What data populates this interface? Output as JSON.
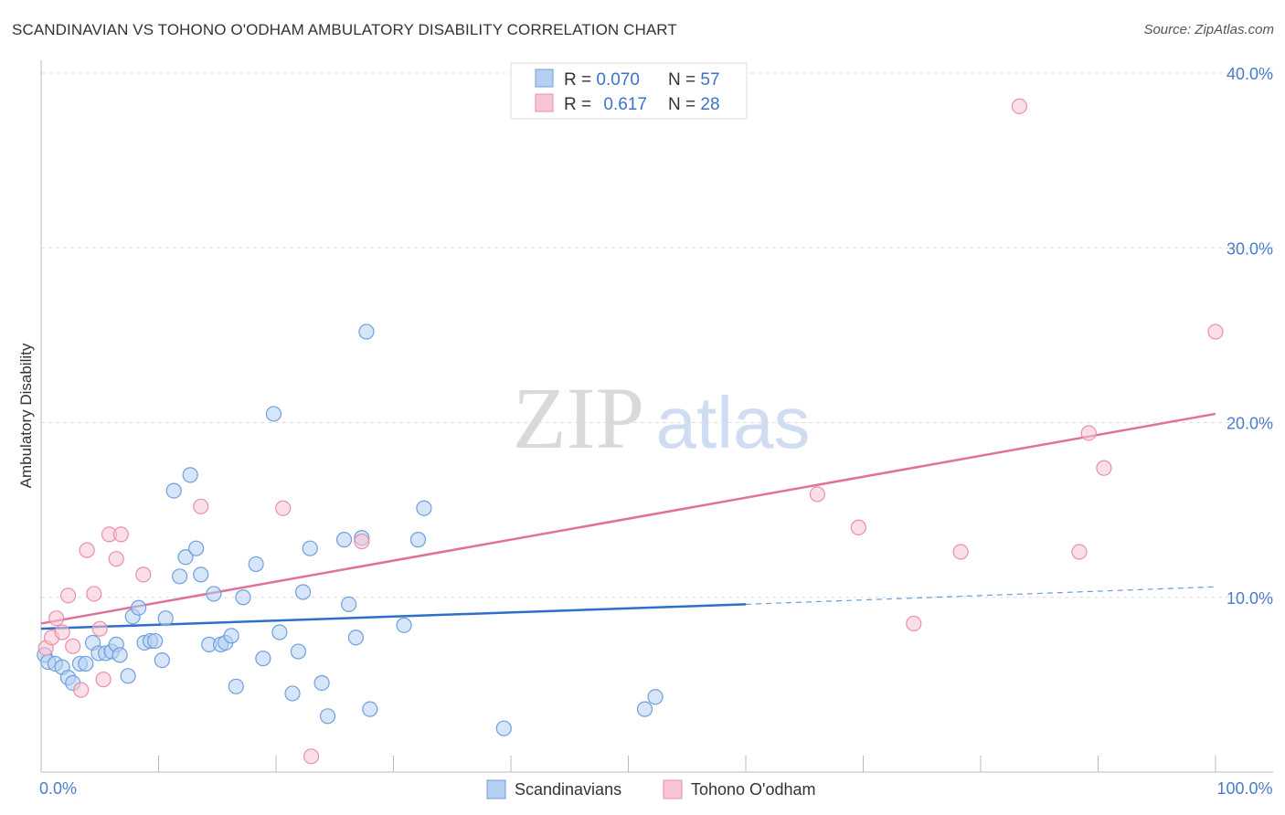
{
  "title": "SCANDINAVIAN VS TOHONO O'ODHAM AMBULATORY DISABILITY CORRELATION CHART",
  "source": "Source: ZipAtlas.com",
  "watermark": {
    "zip": "ZIP",
    "atlas": "atlas"
  },
  "colors": {
    "blue_fill": "#b5cff2",
    "blue_stroke": "#6f9fdc",
    "blue_line": "#2e6fcc",
    "pink_fill": "#f8c5d4",
    "pink_stroke": "#e98eaa",
    "pink_line": "#e0719a",
    "axis_text": "#4a7cc9",
    "grid": "#dddddd"
  },
  "legend": {
    "rows": [
      {
        "r_label": "R = ",
        "r_value": "0.070",
        "n_label": "N = ",
        "n_value": "57",
        "series": "blue"
      },
      {
        "r_label": "R = ",
        "r_value": "0.617",
        "n_label": "N = ",
        "n_value": "28",
        "series": "pink"
      }
    ]
  },
  "chart_data": {
    "type": "scatter",
    "ylabel": "Ambulatory Disability",
    "xlabel": "",
    "xlim": [
      0,
      100
    ],
    "ylim": [
      0,
      40
    ],
    "x_tick_labels": [
      {
        "value": 0,
        "label": "0.0%"
      },
      {
        "value": 100,
        "label": "100.0%"
      }
    ],
    "y_ticks": [
      {
        "value": 10,
        "label": "10.0%"
      },
      {
        "value": 20,
        "label": "20.0%"
      },
      {
        "value": 30,
        "label": "30.0%"
      },
      {
        "value": 40,
        "label": "40.0%"
      }
    ],
    "x_minor_ticks": [
      0,
      10,
      20,
      30,
      40,
      50,
      60,
      70,
      80,
      90,
      100
    ],
    "grid": "horizontal-dashed",
    "legend_placement": "top-center",
    "series": [
      {
        "name": "Scandinavians",
        "color": "blue",
        "trend": {
          "solid": [
            [
              0,
              8.2
            ],
            [
              60,
              9.6
            ]
          ],
          "dashed": [
            [
              60,
              9.6
            ],
            [
              100,
              10.6
            ]
          ]
        },
        "points": [
          [
            0.3,
            6.7
          ],
          [
            0.6,
            6.3
          ],
          [
            1.2,
            6.2
          ],
          [
            1.8,
            6.0
          ],
          [
            2.3,
            5.4
          ],
          [
            2.7,
            5.1
          ],
          [
            3.3,
            6.2
          ],
          [
            3.8,
            6.2
          ],
          [
            4.4,
            7.4
          ],
          [
            4.9,
            6.8
          ],
          [
            5.5,
            6.8
          ],
          [
            6.0,
            6.9
          ],
          [
            6.4,
            7.3
          ],
          [
            6.7,
            6.7
          ],
          [
            7.4,
            5.5
          ],
          [
            7.8,
            8.9
          ],
          [
            8.3,
            9.4
          ],
          [
            8.8,
            7.4
          ],
          [
            9.3,
            7.5
          ],
          [
            9.7,
            7.5
          ],
          [
            10.3,
            6.4
          ],
          [
            10.6,
            8.8
          ],
          [
            11.3,
            16.1
          ],
          [
            11.8,
            11.2
          ],
          [
            12.3,
            12.3
          ],
          [
            12.7,
            17.0
          ],
          [
            13.2,
            12.8
          ],
          [
            13.6,
            11.3
          ],
          [
            14.3,
            7.3
          ],
          [
            14.7,
            10.2
          ],
          [
            15.3,
            7.3
          ],
          [
            15.7,
            7.4
          ],
          [
            16.2,
            7.8
          ],
          [
            16.6,
            4.9
          ],
          [
            17.2,
            10.0
          ],
          [
            18.3,
            11.9
          ],
          [
            18.9,
            6.5
          ],
          [
            19.8,
            20.5
          ],
          [
            20.3,
            8.0
          ],
          [
            21.4,
            4.5
          ],
          [
            21.9,
            6.9
          ],
          [
            22.3,
            10.3
          ],
          [
            22.9,
            12.8
          ],
          [
            23.9,
            5.1
          ],
          [
            24.4,
            3.2
          ],
          [
            25.8,
            13.3
          ],
          [
            26.2,
            9.6
          ],
          [
            26.8,
            7.7
          ],
          [
            27.3,
            13.4
          ],
          [
            27.7,
            25.2
          ],
          [
            28.0,
            3.6
          ],
          [
            30.9,
            8.4
          ],
          [
            32.1,
            13.3
          ],
          [
            32.6,
            15.1
          ],
          [
            39.4,
            2.5
          ],
          [
            51.4,
            3.6
          ],
          [
            52.3,
            4.3
          ]
        ]
      },
      {
        "name": "Tohono O'odham",
        "color": "pink",
        "trend": {
          "solid": [
            [
              0,
              8.5
            ],
            [
              100,
              20.5
            ]
          ]
        },
        "points": [
          [
            0.4,
            7.1
          ],
          [
            0.9,
            7.7
          ],
          [
            1.3,
            8.8
          ],
          [
            1.8,
            8.0
          ],
          [
            2.3,
            10.1
          ],
          [
            2.7,
            7.2
          ],
          [
            3.4,
            4.7
          ],
          [
            3.9,
            12.7
          ],
          [
            4.5,
            10.2
          ],
          [
            5.0,
            8.2
          ],
          [
            5.3,
            5.3
          ],
          [
            5.8,
            13.6
          ],
          [
            6.4,
            12.2
          ],
          [
            6.8,
            13.6
          ],
          [
            8.7,
            11.3
          ],
          [
            13.6,
            15.2
          ],
          [
            20.6,
            15.1
          ],
          [
            23.0,
            0.9
          ],
          [
            27.3,
            13.2
          ],
          [
            66.1,
            15.9
          ],
          [
            69.6,
            14.0
          ],
          [
            74.3,
            8.5
          ],
          [
            78.3,
            12.6
          ],
          [
            83.3,
            38.1
          ],
          [
            88.4,
            12.6
          ],
          [
            89.2,
            19.4
          ],
          [
            90.5,
            17.4
          ],
          [
            100.0,
            25.2
          ]
        ]
      }
    ]
  }
}
